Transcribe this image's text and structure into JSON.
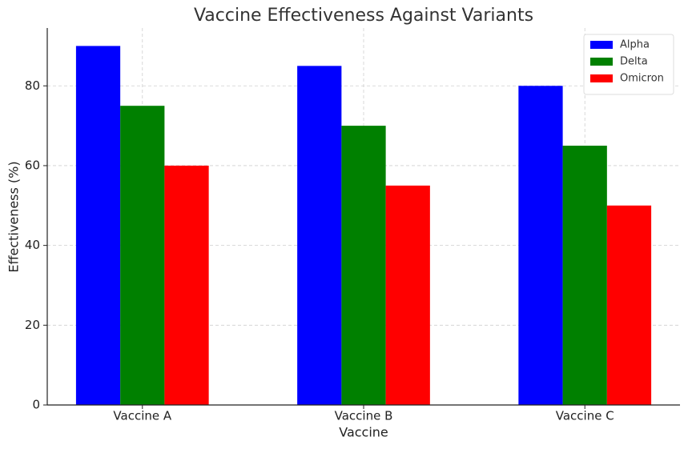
{
  "chart_data": {
    "type": "bar",
    "title": "Vaccine Effectiveness Against Variants",
    "x_label": "Vaccine",
    "y_label": "Effectiveness (%)",
    "categories": [
      "Vaccine A",
      "Vaccine B",
      "Vaccine C"
    ],
    "series": [
      {
        "name": "Alpha",
        "color": "#0000ff",
        "values": [
          90,
          85,
          80
        ]
      },
      {
        "name": "Delta",
        "color": "#008000",
        "values": [
          75,
          70,
          65
        ]
      },
      {
        "name": "Omicron",
        "color": "#ff0000",
        "values": [
          60,
          55,
          50
        ]
      }
    ],
    "ylim": [
      0,
      94.5
    ],
    "yticks": [
      0,
      20,
      40,
      60,
      80
    ],
    "grid": true,
    "legend": "upper right"
  }
}
